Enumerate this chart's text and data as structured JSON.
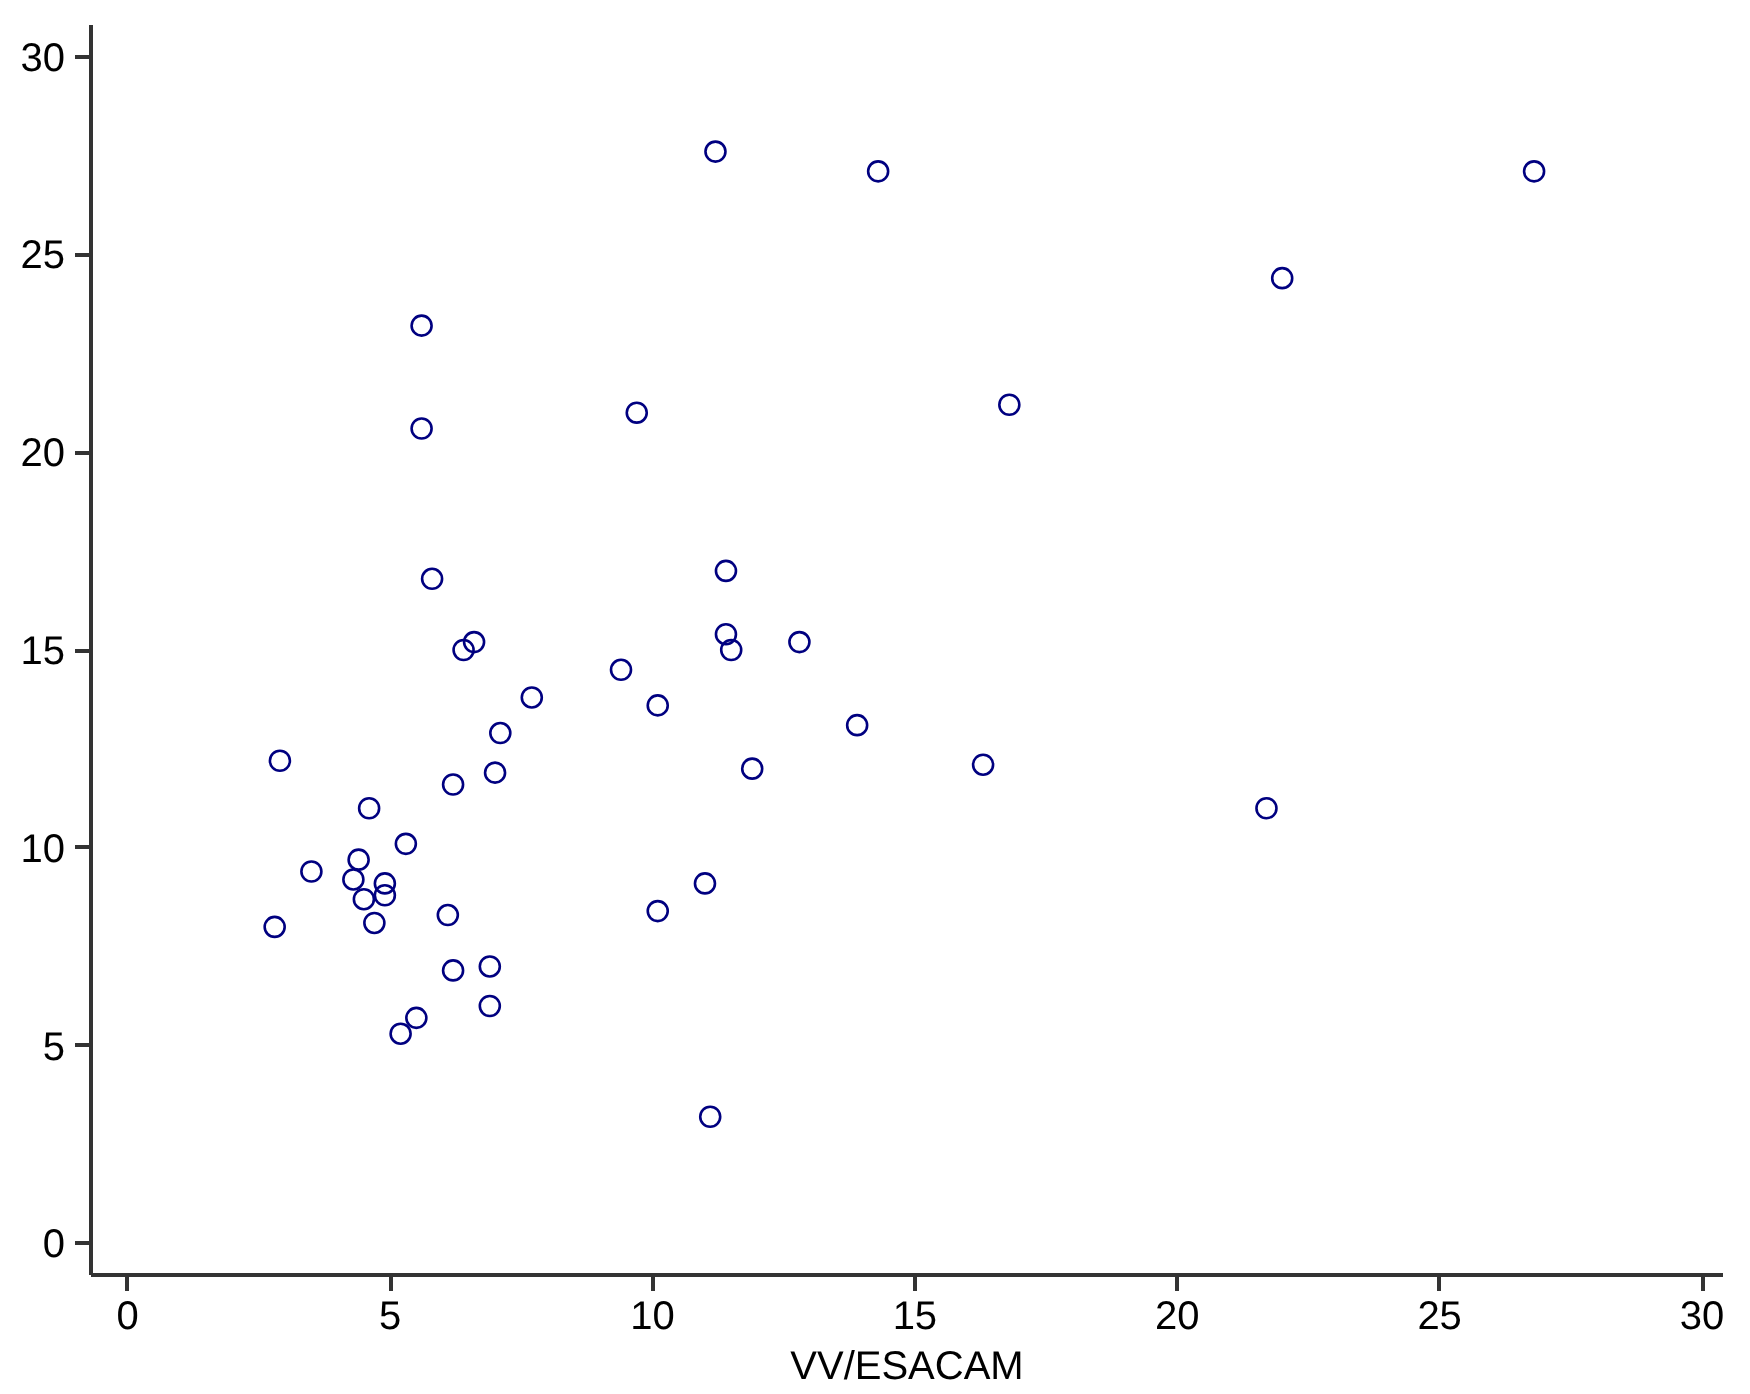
{
  "chart_data": {
    "type": "scatter",
    "xlabel": "VV/ESACAM",
    "xlim": [
      -0.7,
      30.4
    ],
    "ylim": [
      -0.8,
      30.8
    ],
    "xticks": [
      0,
      5,
      10,
      15,
      20,
      25,
      30
    ],
    "yticks": [
      0,
      5,
      10,
      15,
      20,
      25,
      30
    ],
    "grid": false,
    "marker": "circle",
    "x": [
      11.2,
      14.3,
      26.8,
      22.0,
      5.6,
      16.8,
      9.7,
      5.6,
      5.8,
      11.4,
      11.4,
      11.5,
      12.8,
      6.4,
      6.6,
      9.4,
      7.7,
      10.1,
      13.9,
      7.1,
      2.9,
      11.9,
      16.3,
      7.0,
      6.2,
      4.6,
      21.7,
      5.3,
      4.4,
      3.5,
      4.3,
      4.9,
      11.0,
      4.9,
      4.5,
      6.1,
      10.1,
      4.7,
      2.8,
      6.2,
      6.9,
      6.9,
      5.5,
      5.2,
      11.1
    ],
    "series": [
      {
        "color": "#000080",
        "values": [
          27.6,
          27.1,
          27.1,
          24.4,
          23.2,
          21.2,
          21.0,
          20.6,
          16.8,
          17.0,
          15.4,
          15.0,
          15.2,
          15.0,
          15.2,
          14.5,
          13.8,
          13.6,
          13.1,
          12.9,
          12.2,
          12.0,
          12.1,
          11.9,
          11.6,
          11.0,
          11.0,
          10.1,
          9.7,
          9.4,
          9.2,
          9.1,
          9.1,
          8.8,
          8.7,
          8.3,
          8.4,
          8.1,
          8.0,
          6.9,
          7.0,
          6.0,
          5.7,
          5.3,
          3.2
        ]
      }
    ]
  }
}
